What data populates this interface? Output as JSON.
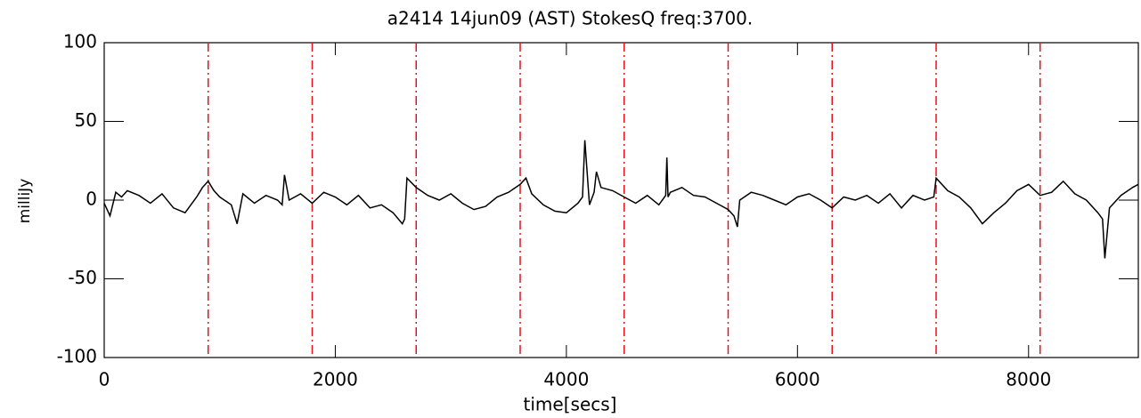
{
  "chart_data": {
    "type": "line",
    "title": "a2414 14jun09 (AST) StokesQ freq:3700.",
    "x_label": "time[secs]",
    "y_label": "milliJy",
    "x": [
      0,
      50,
      100,
      150,
      200,
      300,
      400,
      500,
      600,
      700,
      800,
      850,
      900,
      950,
      1000,
      1100,
      1150,
      1200,
      1300,
      1400,
      1500,
      1540,
      1560,
      1600,
      1700,
      1800,
      1900,
      2000,
      2100,
      2200,
      2300,
      2400,
      2500,
      2580,
      2600,
      2620,
      2700,
      2800,
      2900,
      3000,
      3100,
      3200,
      3300,
      3400,
      3500,
      3600,
      3650,
      3700,
      3800,
      3900,
      4000,
      4100,
      4140,
      4160,
      4200,
      4240,
      4260,
      4300,
      4400,
      4500,
      4600,
      4700,
      4800,
      4860,
      4870,
      4880,
      4900,
      5000,
      5100,
      5200,
      5300,
      5400,
      5450,
      5480,
      5500,
      5600,
      5700,
      5800,
      5900,
      6000,
      6100,
      6200,
      6300,
      6400,
      6500,
      6600,
      6700,
      6800,
      6900,
      7000,
      7100,
      7180,
      7200,
      7300,
      7400,
      7500,
      7600,
      7700,
      7800,
      7900,
      8000,
      8100,
      8200,
      8300,
      8400,
      8500,
      8600,
      8640,
      8660,
      8700,
      8800,
      8900,
      8950
    ],
    "series": [
      {
        "color": "#000000",
        "values": [
          -2,
          -10,
          5,
          2,
          6,
          3,
          -2,
          4,
          -5,
          -8,
          2,
          8,
          12,
          6,
          2,
          -3,
          -15,
          4,
          -2,
          3,
          0,
          -3,
          16,
          0,
          4,
          -2,
          5,
          2,
          -3,
          3,
          -5,
          -3,
          -8,
          -15,
          -12,
          14,
          8,
          3,
          0,
          4,
          -2,
          -6,
          -4,
          2,
          5,
          10,
          14,
          4,
          -3,
          -7,
          -8,
          -2,
          2,
          38,
          -3,
          5,
          18,
          8,
          6,
          2,
          -2,
          3,
          -3,
          3,
          27,
          2,
          5,
          8,
          3,
          2,
          -2,
          -6,
          -10,
          -17,
          0,
          5,
          3,
          0,
          -3,
          2,
          4,
          0,
          -5,
          2,
          0,
          3,
          -2,
          4,
          -5,
          3,
          0,
          2,
          14,
          6,
          2,
          -5,
          -15,
          -8,
          -2,
          6,
          10,
          3,
          5,
          12,
          4,
          0,
          -8,
          -12,
          -37,
          -5,
          3,
          8,
          10
        ]
      }
    ],
    "markers": [
      900,
      1800,
      2700,
      3600,
      4500,
      5400,
      6300,
      7200,
      8100
    ],
    "marker_color": "#e8101a",
    "xlim": [
      0,
      8950
    ],
    "xticks": [
      0,
      2000,
      4000,
      6000,
      8000
    ],
    "ylim": [
      -100,
      100
    ],
    "yticks": [
      -100,
      -50,
      0,
      50,
      100
    ]
  }
}
